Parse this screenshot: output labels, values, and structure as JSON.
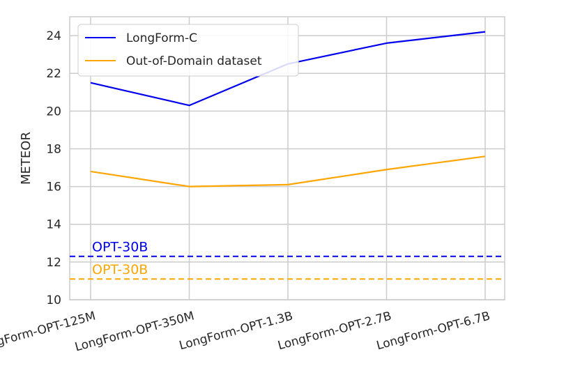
{
  "chart_data": {
    "type": "line",
    "categories": [
      "LongForm-OPT-125M",
      "LongForm-OPT-350M",
      "LongForm-OPT-1.3B",
      "LongForm-OPT-2.7B",
      "LongForm-OPT-6.7B"
    ],
    "series": [
      {
        "name": "LongForm-C",
        "color": "#0000ee",
        "values": [
          21.5,
          20.3,
          22.5,
          23.6,
          24.2
        ]
      },
      {
        "name": "Out-of-Domain dataset",
        "color": "#ffa500",
        "values": [
          16.8,
          16.0,
          16.1,
          16.9,
          17.6
        ]
      }
    ],
    "reference_lines": [
      {
        "label": "OPT-30B",
        "value": 12.3,
        "color": "#0000ee",
        "style": "dashed"
      },
      {
        "label": "OPT-30B",
        "value": 11.1,
        "color": "#ffa500",
        "style": "dashed"
      }
    ],
    "xlabel": "",
    "ylabel": "METEOR",
    "ylim": [
      10,
      25
    ],
    "yticks": [
      10,
      12,
      14,
      16,
      18,
      20,
      22,
      24
    ],
    "grid": true,
    "legend_position": "upper-left"
  }
}
